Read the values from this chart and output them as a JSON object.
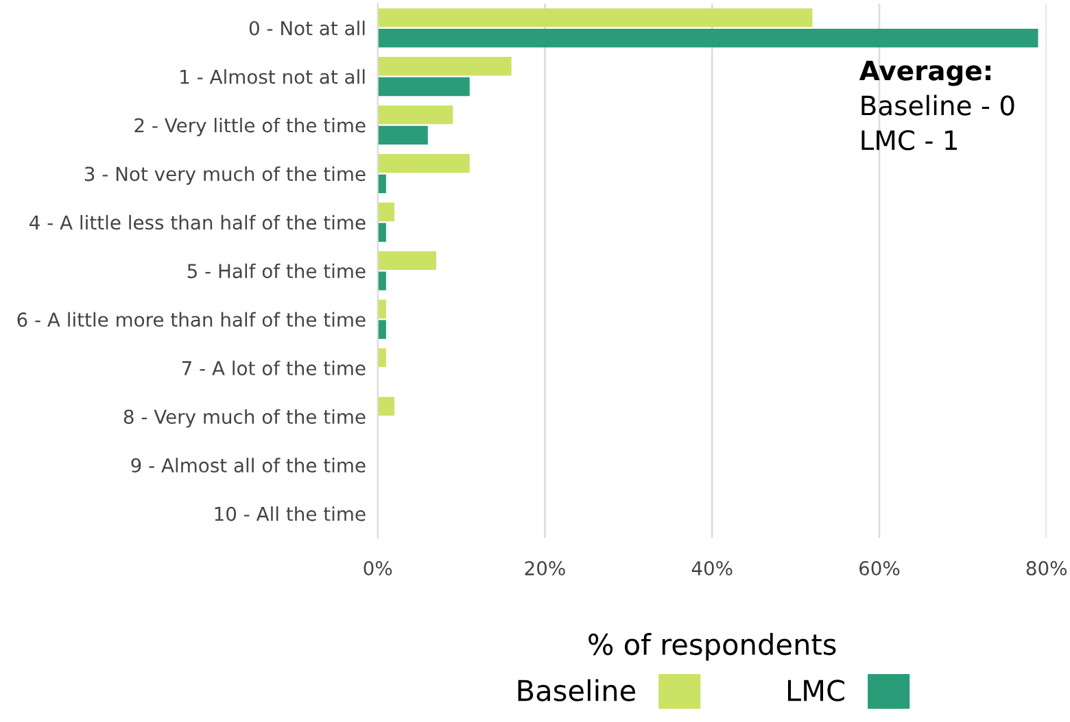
{
  "chart_data": {
    "type": "bar",
    "orientation": "horizontal",
    "categories": [
      "0 - Not at all",
      "1 - Almost not at all",
      "2 - Very little of the time",
      "3 - Not very much of the time",
      "4 - A little less than half of the time",
      "5 - Half of the time",
      "6 - A little more than half of the time",
      "7 - A lot of the time",
      "8 - Very much of the time",
      "9 - Almost all of the time",
      "10 - All the time"
    ],
    "series": [
      {
        "name": "Baseline",
        "color": "#cbe265",
        "values": [
          52,
          16,
          9,
          11,
          2,
          7,
          1,
          1,
          2,
          0,
          0
        ]
      },
      {
        "name": "LMC",
        "color": "#2a9d78",
        "values": [
          79,
          11,
          6,
          1,
          1,
          1,
          1,
          0,
          0,
          0,
          0
        ]
      }
    ],
    "xlim": [
      0,
      80
    ],
    "xticks": [
      {
        "value": 0,
        "label": "0%"
      },
      {
        "value": 20,
        "label": "20%"
      },
      {
        "value": 40,
        "label": "40%"
      },
      {
        "value": 60,
        "label": "60%"
      },
      {
        "value": 80,
        "label": "80%"
      }
    ],
    "grid": "x",
    "legend": "bottom",
    "legend_title": "% of respondents",
    "annotations": [
      "Average:",
      "Baseline - 0",
      "LMC - 1"
    ]
  }
}
